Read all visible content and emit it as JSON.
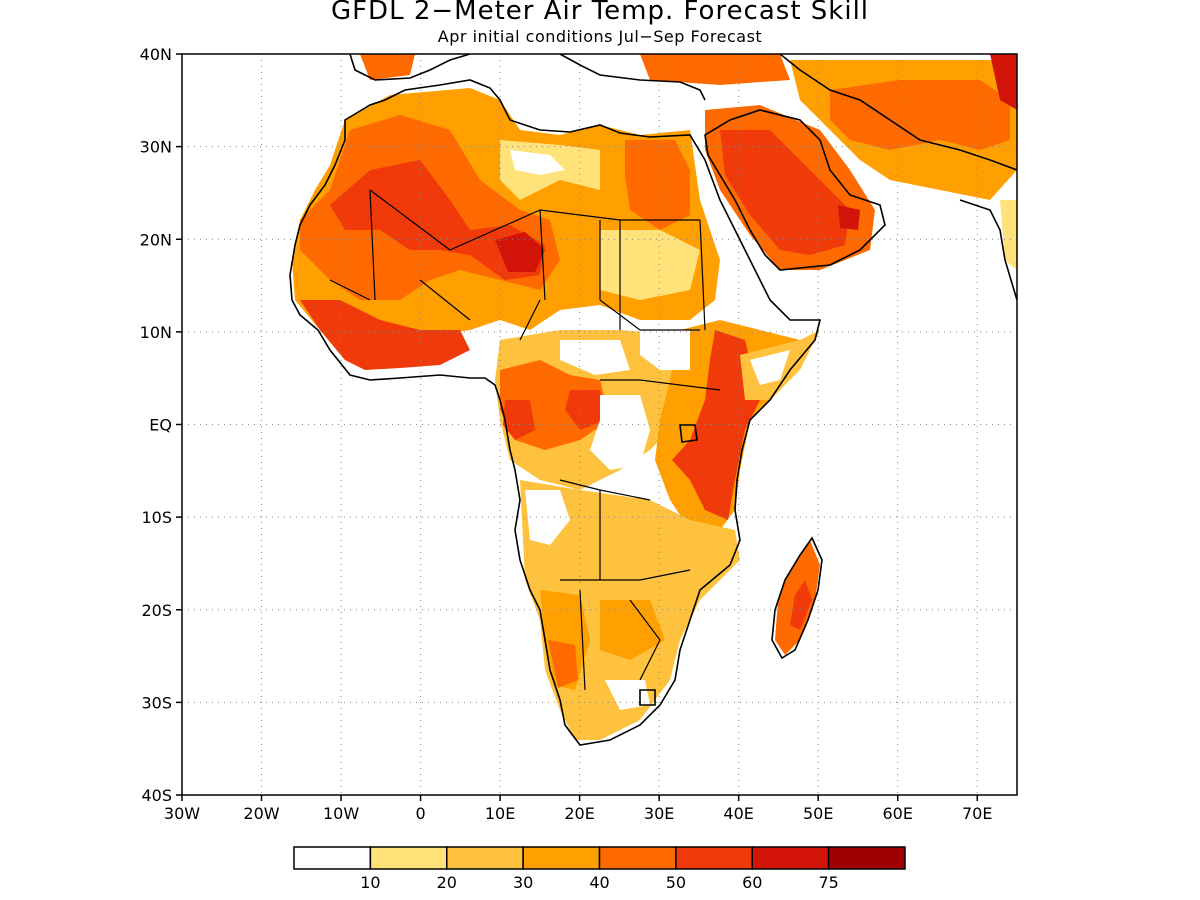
{
  "title": "GFDL 2−Meter Air Temp. Forecast Skill",
  "subtitle": "Apr initial conditions  Jul−Sep Forecast",
  "map": {
    "lon_range": [
      -30,
      75
    ],
    "lat_range": [
      -40,
      40
    ],
    "lat_ticks": [
      {
        "value": 40,
        "label": "40N"
      },
      {
        "value": 30,
        "label": "30N"
      },
      {
        "value": 20,
        "label": "20N"
      },
      {
        "value": 10,
        "label": "10N"
      },
      {
        "value": 0,
        "label": "EQ"
      },
      {
        "value": -10,
        "label": "10S"
      },
      {
        "value": -20,
        "label": "20S"
      },
      {
        "value": -30,
        "label": "30S"
      },
      {
        "value": -40,
        "label": "40S"
      }
    ],
    "lon_ticks": [
      {
        "value": -30,
        "label": "30W"
      },
      {
        "value": -20,
        "label": "20W"
      },
      {
        "value": -10,
        "label": "10W"
      },
      {
        "value": 0,
        "label": "0"
      },
      {
        "value": 10,
        "label": "10E"
      },
      {
        "value": 20,
        "label": "20E"
      },
      {
        "value": 30,
        "label": "30E"
      },
      {
        "value": 40,
        "label": "40E"
      },
      {
        "value": 50,
        "label": "50E"
      },
      {
        "value": 60,
        "label": "60E"
      },
      {
        "value": 70,
        "label": "70E"
      }
    ],
    "grid": "dotted"
  },
  "legend": {
    "colors": [
      "#ffffff",
      "#ffe27a",
      "#ffc23e",
      "#ffa000",
      "#ff6a00",
      "#f03a0a",
      "#d21408",
      "#a00000"
    ],
    "labels": [
      "10",
      "20",
      "30",
      "40",
      "50",
      "60",
      "75"
    ]
  },
  "colors": {
    "c10": "#ffe27a",
    "c20": "#ffc23e",
    "c30": "#ffa000",
    "c40": "#ff6a00",
    "c50": "#f03a0a",
    "c60": "#d21408",
    "c75": "#a00000"
  }
}
